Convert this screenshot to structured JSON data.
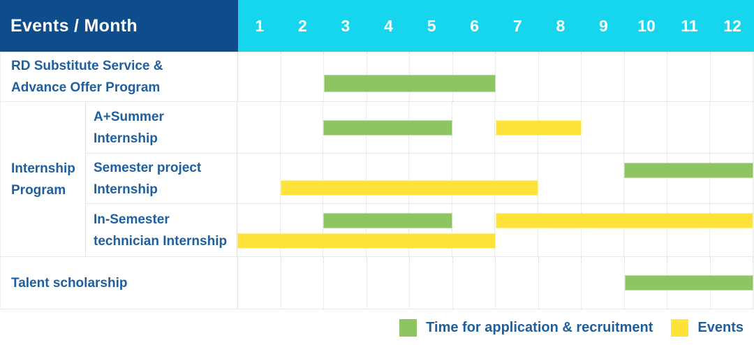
{
  "table": {
    "header": {
      "title": "Events / Month",
      "months": [
        "1",
        "2",
        "3",
        "4",
        "5",
        "6",
        "7",
        "8",
        "9",
        "10",
        "11",
        "12"
      ]
    },
    "group_label_lines": [
      "Internship",
      "Program"
    ],
    "rows": [
      {
        "id": "rd-substitute",
        "label_lines": [
          "RD Substitute Service &",
          "Advance Offer Program"
        ],
        "group": null,
        "bars": [
          {
            "kind": "application",
            "start": 3,
            "end": 6,
            "lane": "low"
          }
        ]
      },
      {
        "id": "a-plus-summer",
        "label_lines": [
          "A+Summer",
          "Internship"
        ],
        "group": "Internship Program",
        "bars": [
          {
            "kind": "application",
            "start": 3,
            "end": 5,
            "lane": "middle"
          },
          {
            "kind": "event",
            "start": 7,
            "end": 8,
            "lane": "middle"
          }
        ]
      },
      {
        "id": "semester-project",
        "label_lines": [
          "Semester project",
          "Internship"
        ],
        "group": "Internship Program",
        "bars": [
          {
            "kind": "application",
            "start": 10,
            "end": 12,
            "lane": "top"
          },
          {
            "kind": "event",
            "start": 2,
            "end": 7,
            "lane": "bottom"
          }
        ]
      },
      {
        "id": "in-semester-technician",
        "label_lines": [
          "In-Semester",
          "technician Internship"
        ],
        "group": "Internship Program",
        "bars": [
          {
            "kind": "application",
            "start": 3,
            "end": 5,
            "lane": "top"
          },
          {
            "kind": "event",
            "start": 7,
            "end": 12,
            "lane": "top"
          },
          {
            "kind": "event",
            "start": 1,
            "end": 6,
            "lane": "bottom"
          }
        ]
      },
      {
        "id": "talent-scholarship",
        "label_lines": [
          "Talent scholarship"
        ],
        "group": null,
        "bars": [
          {
            "kind": "application",
            "start": 10,
            "end": 12,
            "lane": "middle"
          }
        ]
      }
    ]
  },
  "legend": [
    {
      "kind": "application",
      "label": "Time for application & recruitment"
    },
    {
      "kind": "event",
      "label": "Events"
    }
  ],
  "colors": {
    "header_navy": "#0e4c8b",
    "header_cyan": "#15d6ec",
    "text_blue": "#1e5f9f",
    "application_green": "#8cc561",
    "event_yellow": "#ffe33b"
  },
  "chart_data": {
    "type": "gantt",
    "title": "Events / Month",
    "x_unit": "month",
    "x_ticks": [
      1,
      2,
      3,
      4,
      5,
      6,
      7,
      8,
      9,
      10,
      11,
      12
    ],
    "xlim": [
      1,
      12
    ],
    "grid": "dotted-vertical",
    "legend_position": "bottom-right",
    "legend": [
      {
        "label": "Time for application & recruitment",
        "color": "#8cc561"
      },
      {
        "label": "Events",
        "color": "#ffe33b"
      }
    ],
    "rows": [
      {
        "event": "RD Substitute Service & Advance Offer Program",
        "group": null,
        "spans": [
          {
            "type": "application & recruitment",
            "months": [
              3,
              6
            ]
          }
        ]
      },
      {
        "event": "A+Summer Internship",
        "group": "Internship Program",
        "spans": [
          {
            "type": "application & recruitment",
            "months": [
              3,
              5
            ]
          },
          {
            "type": "events",
            "months": [
              7,
              8
            ]
          }
        ]
      },
      {
        "event": "Semester project Internship",
        "group": "Internship Program",
        "spans": [
          {
            "type": "application & recruitment",
            "months": [
              10,
              12
            ]
          },
          {
            "type": "events",
            "months": [
              2,
              7
            ]
          }
        ]
      },
      {
        "event": "In-Semester technician Internship",
        "group": "Internship Program",
        "spans": [
          {
            "type": "application & recruitment",
            "months": [
              3,
              5
            ]
          },
          {
            "type": "events",
            "months": [
              1,
              6
            ]
          },
          {
            "type": "events",
            "months": [
              7,
              12
            ]
          }
        ]
      },
      {
        "event": "Talent scholarship",
        "group": null,
        "spans": [
          {
            "type": "application & recruitment",
            "months": [
              10,
              12
            ]
          }
        ]
      }
    ]
  }
}
